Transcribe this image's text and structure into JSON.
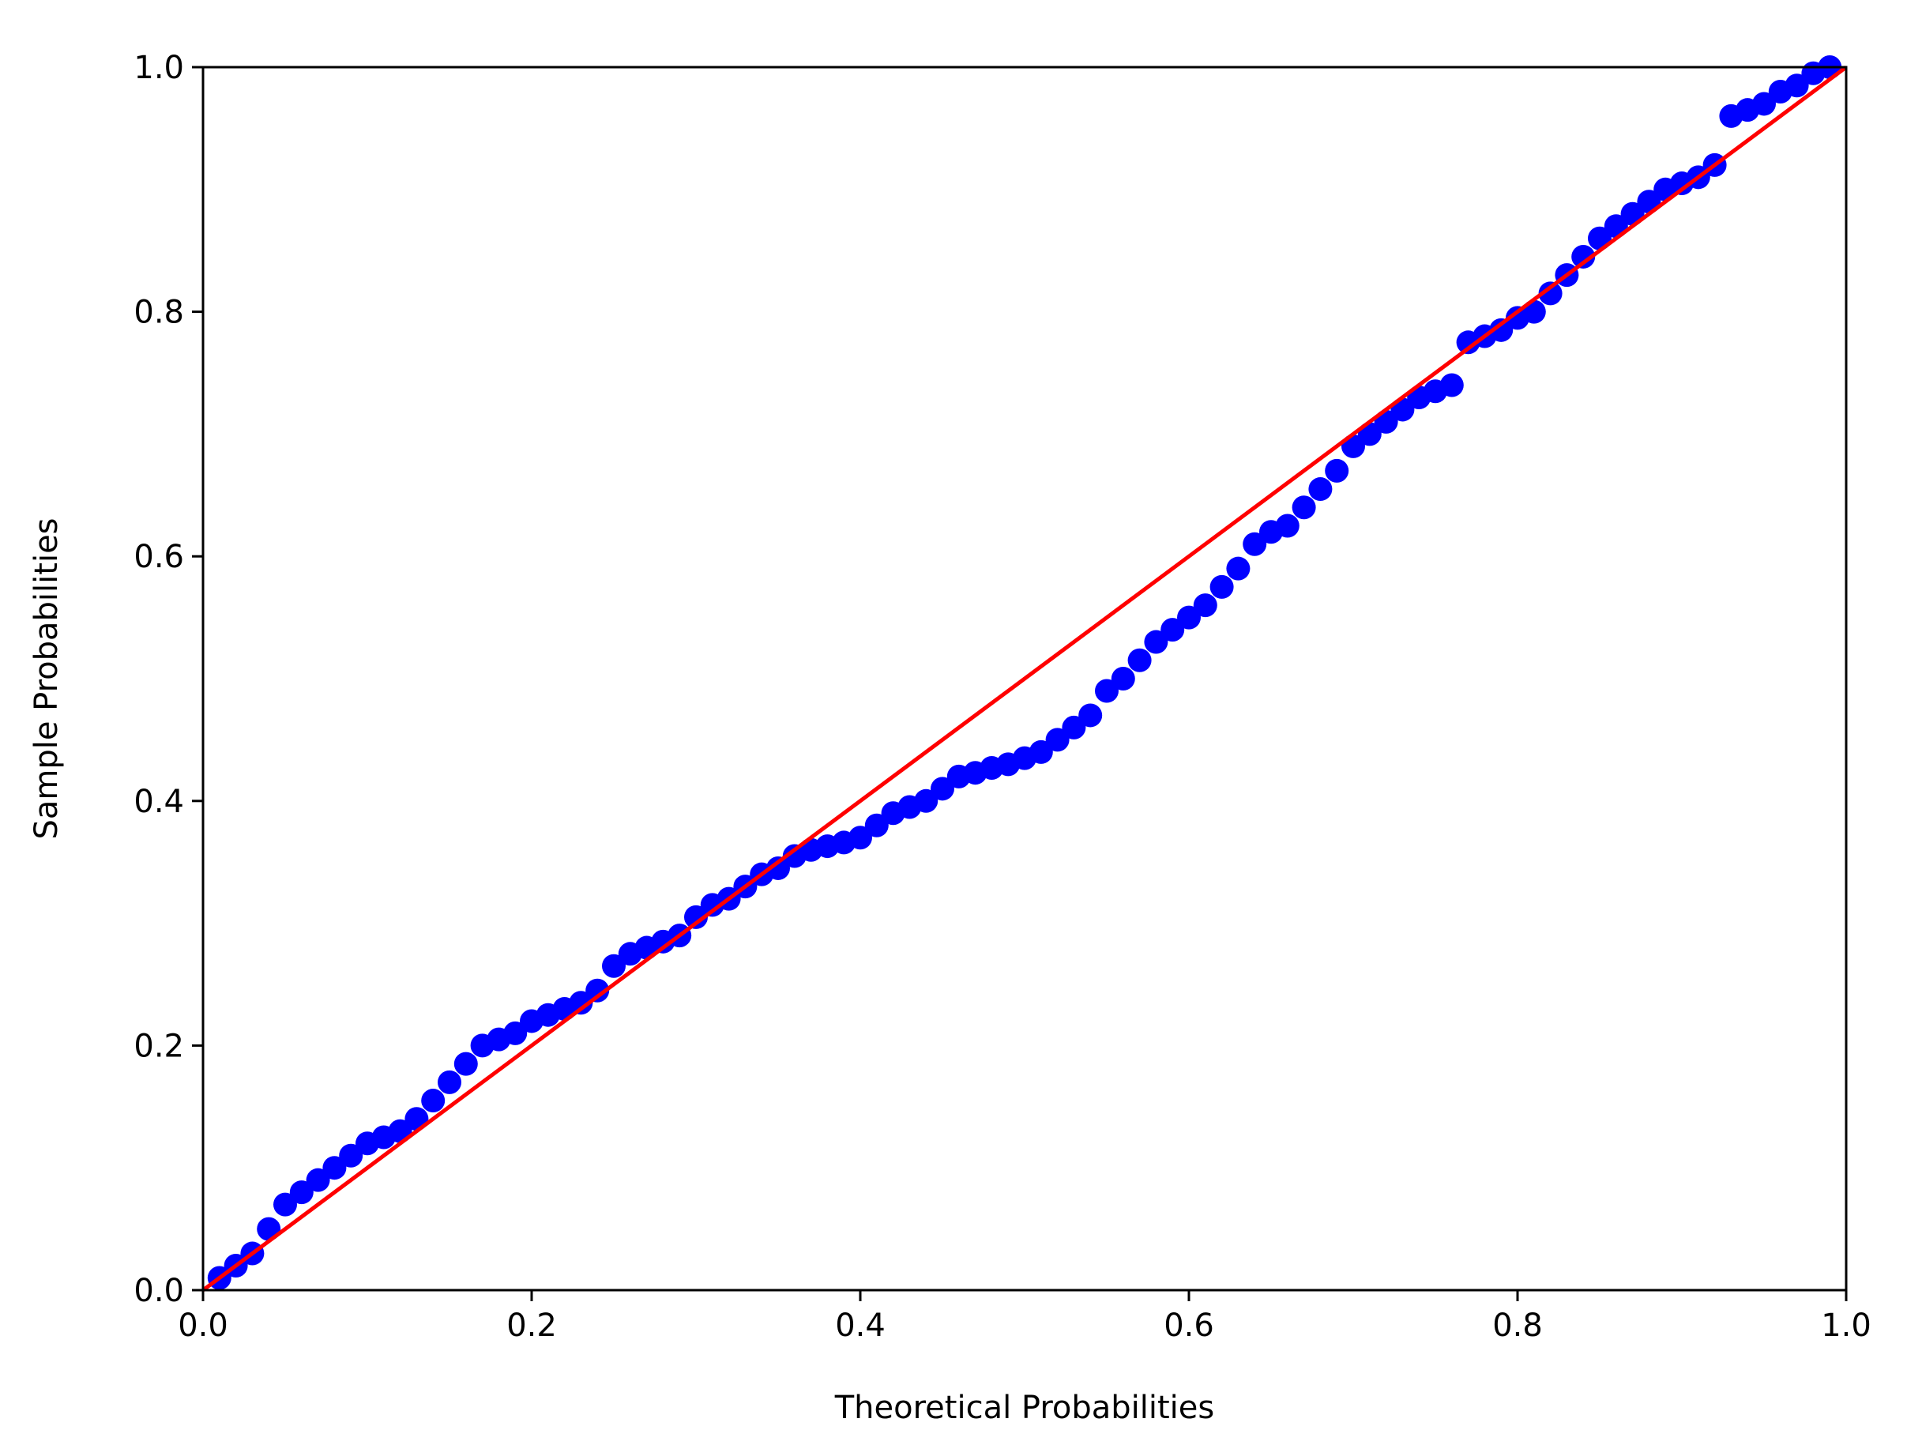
{
  "chart_data": {
    "type": "scatter",
    "x_label": "Theoretical Probabilities",
    "y_label": "Sample Probabilities",
    "xlim": [
      0.0,
      1.0
    ],
    "ylim": [
      0.0,
      1.0
    ],
    "xticks": [
      {
        "value": 0,
        "label": "0.0"
      },
      0.2,
      0.4,
      0.6,
      0.8,
      {
        "value": 1,
        "label": "1.0"
      }
    ],
    "yticks": [
      {
        "value": 0,
        "label": "0.0"
      },
      0.2,
      0.4,
      0.6,
      0.8,
      {
        "value": 1,
        "label": "1.0"
      }
    ],
    "series": [
      {
        "color": "#0000ff",
        "x": [
          0.01,
          0.02,
          0.03,
          0.04,
          0.05,
          0.06,
          0.07,
          0.08,
          0.09,
          0.1,
          0.11,
          0.12,
          0.13,
          0.14,
          0.15,
          0.16,
          0.17,
          0.18,
          0.19,
          0.2,
          0.21,
          0.22,
          0.23,
          0.24,
          0.25,
          0.26,
          0.27,
          0.28,
          0.29,
          0.3,
          0.31,
          0.32,
          0.33,
          0.34,
          0.35,
          0.36,
          0.37,
          0.38,
          0.39,
          0.4,
          0.41,
          0.42,
          0.43,
          0.44,
          0.45,
          0.46,
          0.47,
          0.48,
          0.49,
          0.5,
          0.51,
          0.52,
          0.53,
          0.54,
          0.55,
          0.56,
          0.57,
          0.58,
          0.59,
          0.6,
          0.61,
          0.62,
          0.63,
          0.64,
          0.65,
          0.66,
          0.67,
          0.68,
          0.69,
          0.7,
          0.71,
          0.72,
          0.73,
          0.74,
          0.75,
          0.76,
          0.77,
          0.78,
          0.79,
          0.8,
          0.81,
          0.82,
          0.83,
          0.84,
          0.85,
          0.86,
          0.87,
          0.88,
          0.89,
          0.9,
          0.91,
          0.92,
          0.93,
          0.94,
          0.95,
          0.96,
          0.97,
          0.98,
          0.99
        ],
        "values": [
          0.01,
          0.02,
          0.03,
          0.05,
          0.07,
          0.08,
          0.09,
          0.1,
          0.11,
          0.12,
          0.125,
          0.13,
          0.14,
          0.155,
          0.17,
          0.185,
          0.2,
          0.205,
          0.21,
          0.22,
          0.225,
          0.23,
          0.235,
          0.245,
          0.265,
          0.275,
          0.28,
          0.285,
          0.29,
          0.305,
          0.315,
          0.32,
          0.33,
          0.34,
          0.345,
          0.355,
          0.36,
          0.363,
          0.366,
          0.37,
          0.38,
          0.39,
          0.395,
          0.4,
          0.41,
          0.42,
          0.423,
          0.427,
          0.43,
          0.435,
          0.44,
          0.45,
          0.46,
          0.47,
          0.49,
          0.5,
          0.515,
          0.53,
          0.54,
          0.55,
          0.56,
          0.575,
          0.59,
          0.61,
          0.62,
          0.625,
          0.64,
          0.655,
          0.67,
          0.69,
          0.7,
          0.71,
          0.72,
          0.73,
          0.735,
          0.74,
          0.775,
          0.78,
          0.785,
          0.795,
          0.8,
          0.815,
          0.83,
          0.845,
          0.86,
          0.87,
          0.88,
          0.89,
          0.9,
          0.905,
          0.91,
          0.92,
          0.96,
          0.965,
          0.97,
          0.98,
          0.985,
          0.995,
          1.0
        ]
      }
    ],
    "reference_line": {
      "color": "#ff0000",
      "x": [
        0,
        1
      ],
      "values": [
        0,
        1
      ]
    }
  }
}
